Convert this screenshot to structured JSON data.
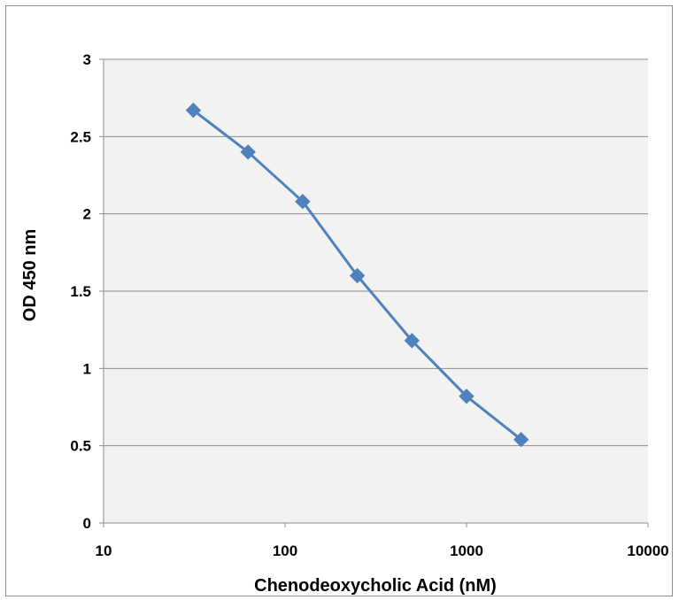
{
  "chart_data": {
    "type": "line",
    "title": "",
    "xlabel": "Chenodeoxycholic Acid (nM)",
    "ylabel": "OD 450 nm",
    "x_scale": "log",
    "xlim": [
      10,
      10000
    ],
    "ylim": [
      0,
      3
    ],
    "x_ticks": [
      "10",
      "100",
      "1000",
      "10000"
    ],
    "y_ticks": [
      "0",
      "0.5",
      "1",
      "1.5",
      "2",
      "2.5",
      "3"
    ],
    "grid": "horizontal",
    "legend": "none",
    "series": [
      {
        "x": [
          31.25,
          62.5,
          125,
          250,
          500,
          1000,
          2000
        ],
        "y": [
          2.67,
          2.4,
          2.08,
          1.6,
          1.18,
          0.82,
          0.54
        ],
        "color": "#4f81bd",
        "marker": "diamond"
      }
    ],
    "plot_background": "#f2f2f2",
    "gridline_color": "#8c8c8c"
  }
}
